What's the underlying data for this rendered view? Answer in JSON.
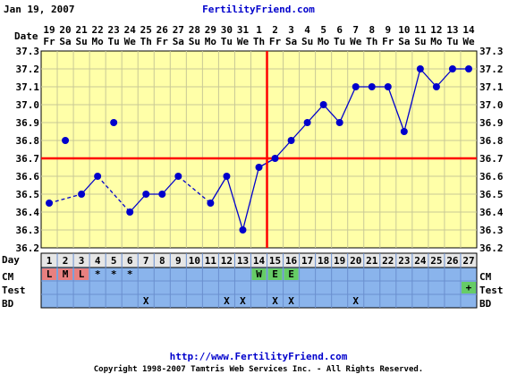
{
  "header": {
    "date": "Jan 19, 2007",
    "site": "FertilityFriend.com"
  },
  "footer": {
    "url": "http://www.FertilityFriend.com",
    "copyright": "Copyright 1998-2007 Tamtris Web Services Inc. - All Rights Reserved."
  },
  "labels": {
    "date_row": "Date",
    "day_row": "Day",
    "cm_row": "CM",
    "test_row": "Test",
    "bd_row": "BD"
  },
  "colors": {
    "plot_bg": "#ffffa8",
    "grid": "#c8c896",
    "line": "#0000cc",
    "marker": "#0000cc",
    "crosshair": "#ff0000",
    "row_bg": "#8ab4ec",
    "day_bg": "#e6e6e6",
    "cm_red": "#e88080",
    "cm_green": "#66cc66"
  },
  "chart_data": {
    "type": "line",
    "title": "",
    "xlabel": "",
    "ylabel": "",
    "ylim": [
      36.2,
      37.3
    ],
    "y_ticks": [
      "36.2",
      "36.3",
      "36.4",
      "36.5",
      "36.6",
      "36.7",
      "36.8",
      "36.9",
      "37.0",
      "37.1",
      "37.2",
      "37.3"
    ],
    "dates": [
      "19",
      "20",
      "21",
      "22",
      "23",
      "24",
      "25",
      "26",
      "27",
      "28",
      "29",
      "30",
      "31",
      "1",
      "2",
      "3",
      "4",
      "5",
      "6",
      "7",
      "8",
      "9",
      "10",
      "11",
      "12",
      "13",
      "14"
    ],
    "weekdays": [
      "Fr",
      "Sa",
      "Su",
      "Mo",
      "Tu",
      "We",
      "Th",
      "Fr",
      "Sa",
      "Su",
      "Mo",
      "Tu",
      "We",
      "Th",
      "Fr",
      "Sa",
      "Su",
      "Mo",
      "Tu",
      "We",
      "Th",
      "Fr",
      "Sa",
      "Su",
      "Mo",
      "Tu",
      "We"
    ],
    "days": [
      "1",
      "2",
      "3",
      "4",
      "5",
      "6",
      "7",
      "8",
      "9",
      "10",
      "11",
      "12",
      "13",
      "14",
      "15",
      "16",
      "17",
      "18",
      "19",
      "20",
      "21",
      "22",
      "23",
      "24",
      "25",
      "26",
      "27"
    ],
    "temps": [
      36.45,
      36.8,
      36.5,
      36.6,
      36.9,
      36.4,
      36.5,
      36.5,
      36.6,
      null,
      36.45,
      36.6,
      36.3,
      36.65,
      36.7,
      36.8,
      36.9,
      37.0,
      36.9,
      37.1,
      37.1,
      37.1,
      36.85,
      37.2,
      37.1,
      37.2,
      37.2
    ],
    "excluded_days": [
      "2",
      "5"
    ],
    "coverline": 36.7,
    "ovulation_day": "14",
    "cm": [
      "L",
      "M",
      "L",
      "*",
      "*",
      "*",
      "",
      "",
      "",
      "",
      "",
      "",
      "",
      "W",
      "E",
      "E",
      "",
      "",
      "",
      "",
      "",
      "",
      "",
      "",
      "",
      "",
      ""
    ],
    "cm_colors": [
      "red",
      "red",
      "red",
      "",
      "",
      "",
      "",
      "",
      "",
      "",
      "",
      "",
      "",
      "green",
      "green",
      "green",
      "",
      "",
      "",
      "",
      "",
      "",
      "",
      "",
      "",
      "",
      ""
    ],
    "test": [
      "",
      "",
      "",
      "",
      "",
      "",
      "",
      "",
      "",
      "",
      "",
      "",
      "",
      "",
      "",
      "",
      "",
      "",
      "",
      "",
      "",
      "",
      "",
      "",
      "",
      "",
      "+"
    ],
    "bd": [
      "",
      "",
      "",
      "",
      "",
      "",
      "X",
      "",
      "",
      "",
      "",
      "X",
      "X",
      "",
      "X",
      "X",
      "",
      "",
      "",
      "X",
      "",
      "",
      "",
      "",
      "",
      "",
      ""
    ]
  }
}
